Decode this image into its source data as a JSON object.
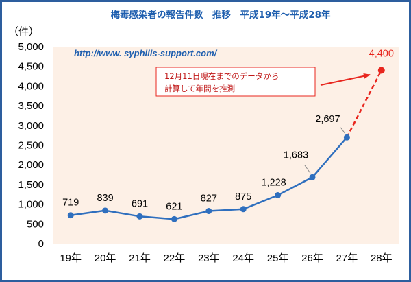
{
  "chart_data": {
    "type": "line",
    "title": "梅毒感染者の報告件数　推移　平成19年〜平成28年",
    "unit_label": "（件）",
    "categories": [
      "19年",
      "20年",
      "21年",
      "22年",
      "23年",
      "24年",
      "25年",
      "26年",
      "27年",
      "28年"
    ],
    "series": [
      {
        "values": [
          719,
          839,
          691,
          621,
          827,
          875,
          1228,
          1683,
          2697,
          null
        ]
      },
      {
        "values": [
          null,
          null,
          null,
          null,
          null,
          null,
          null,
          null,
          2697,
          4400
        ]
      }
    ],
    "data_labels": [
      "719",
      "839",
      "691",
      "621",
      "827",
      "875",
      "1,228",
      "1,683",
      "2,697",
      "4,400"
    ],
    "ylim": [
      0,
      5000
    ],
    "y_ticks": [
      "0",
      "500",
      "1,000",
      "1,500",
      "2,000",
      "2,500",
      "3,000",
      "3,500",
      "4,000",
      "4,500",
      "5,000"
    ],
    "grid": false,
    "colors": {
      "actual": "#2F6FBE",
      "estimate": "#E8261E",
      "title": "#1F5FAF",
      "plot_bg": "#FDF0E6",
      "border": "#2D5E9E",
      "url": "#1F5FAF"
    },
    "annotations": {
      "url": "http://www. syphilis-support.com/",
      "note_line1": "12月11日現在までのデータから",
      "note_line2": "計算して年間を推測"
    }
  }
}
